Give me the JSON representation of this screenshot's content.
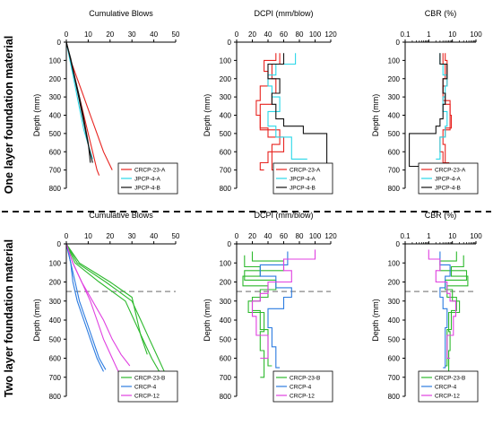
{
  "figure": {
    "row_labels": [
      "One layer foundation material",
      "Two layer foundation material"
    ],
    "colors": {
      "red": "#e8231f",
      "cyan": "#2ad7e8",
      "black": "#111111",
      "green": "#2db92d",
      "blue": "#2b7be0",
      "magenta": "#e040e0",
      "divider": "#111111",
      "ref_line": "#9a9a9a"
    }
  },
  "chart_data": [
    {
      "type": "line",
      "title": "Cumulative Blows",
      "ylabel": "Depth (mm)",
      "xlim": [
        0,
        50
      ],
      "ylim": [
        0,
        800
      ],
      "xticks": [
        "0",
        "10",
        "20",
        "30",
        "40",
        "50"
      ],
      "yticks": [
        "0",
        "100",
        "200",
        "300",
        "400",
        "500",
        "600",
        "700",
        "800"
      ],
      "legend": "bottom-right",
      "series": [
        {
          "name": "CRCP-23-A",
          "color": "red",
          "x": [
            0,
            2,
            5,
            8,
            11,
            14,
            17,
            21
          ],
          "y": [
            0,
            100,
            200,
            300,
            400,
            500,
            600,
            700
          ]
        },
        {
          "name": "CRCP-23-A",
          "color": "red",
          "x": [
            0,
            2,
            4,
            6,
            8,
            10,
            12,
            14,
            15
          ],
          "y": [
            0,
            100,
            200,
            300,
            400,
            500,
            600,
            700,
            730
          ]
        },
        {
          "name": "JPCP-4-A",
          "color": "cyan",
          "x": [
            0,
            2,
            4,
            6,
            8,
            10,
            12
          ],
          "y": [
            0,
            120,
            240,
            360,
            480,
            560,
            640
          ]
        },
        {
          "name": "JPCP-4-B",
          "color": "black",
          "x": [
            0,
            2,
            4,
            6,
            8,
            10,
            12
          ],
          "y": [
            0,
            100,
            210,
            320,
            440,
            560,
            660
          ]
        },
        {
          "name": "JPCP-4-B",
          "color": "black",
          "x": [
            0,
            2,
            4,
            6,
            8,
            10,
            11
          ],
          "y": [
            0,
            90,
            200,
            300,
            420,
            550,
            660
          ]
        }
      ]
    },
    {
      "type": "line",
      "title": "DCPI (mm/blow)",
      "ylabel": "Depth (mm)",
      "xlim": [
        0,
        120
      ],
      "ylim": [
        0,
        800
      ],
      "xticks": [
        "0",
        "20",
        "40",
        "60",
        "80",
        "100",
        "120"
      ],
      "yticks": [
        "0",
        "100",
        "200",
        "300",
        "400",
        "500",
        "600",
        "700",
        "800"
      ],
      "legend": "bottom-right",
      "series": [
        {
          "name": "CRCP-23-A",
          "color": "red",
          "x": [
            50,
            35,
            40,
            30,
            25,
            30,
            40,
            60,
            40,
            30,
            35
          ],
          "y": [
            60,
            100,
            160,
            240,
            320,
            400,
            470,
            520,
            600,
            660,
            700
          ]
        },
        {
          "name": "CRCP-23-A",
          "color": "red",
          "x": [
            55,
            45,
            50,
            45,
            30,
            30,
            55,
            45,
            60
          ],
          "y": [
            60,
            120,
            200,
            280,
            340,
            420,
            480,
            560,
            700
          ]
        },
        {
          "name": "JPCP-4-A",
          "color": "cyan",
          "x": [
            75,
            50,
            40,
            45,
            55,
            40,
            50,
            70,
            90
          ],
          "y": [
            60,
            120,
            180,
            240,
            300,
            380,
            460,
            520,
            640
          ]
        },
        {
          "name": "JPCP-4-B",
          "color": "black",
          "x": [
            60,
            40,
            55,
            45,
            50,
            60,
            85,
            115,
            90
          ],
          "y": [
            60,
            120,
            200,
            280,
            340,
            420,
            460,
            500,
            680
          ]
        }
      ]
    },
    {
      "type": "line",
      "title": "CBR (%)",
      "ylabel": "Depth (mm)",
      "xscale": "log",
      "xlim": [
        0.1,
        100
      ],
      "ylim": [
        0,
        800
      ],
      "xticks": [
        "0.1",
        "1",
        "10",
        "100"
      ],
      "yticks": [
        "0",
        "100",
        "200",
        "300",
        "400",
        "500",
        "600",
        "700",
        "800"
      ],
      "legend": "bottom-right",
      "series": [
        {
          "name": "CRCP-23-A",
          "color": "red",
          "x": [
            5,
            6,
            6,
            4,
            8,
            9,
            5,
            3,
            4,
            7,
            6
          ],
          "y": [
            60,
            100,
            160,
            240,
            320,
            400,
            470,
            520,
            600,
            660,
            700
          ]
        },
        {
          "name": "CRCP-23-A",
          "color": "red",
          "x": [
            4,
            5,
            4,
            5,
            8,
            8,
            4,
            5,
            3
          ],
          "y": [
            60,
            120,
            200,
            280,
            340,
            420,
            480,
            560,
            700
          ]
        },
        {
          "name": "JPCP-4-A",
          "color": "cyan",
          "x": [
            3,
            4,
            6,
            5,
            4,
            6,
            5,
            3,
            2
          ],
          "y": [
            60,
            120,
            180,
            240,
            300,
            380,
            460,
            520,
            640
          ]
        },
        {
          "name": "JPCP-4-B",
          "color": "black",
          "x": [
            3,
            6,
            4,
            5,
            4,
            3,
            2,
            0.15,
            2
          ],
          "y": [
            60,
            120,
            200,
            280,
            340,
            420,
            460,
            500,
            680
          ]
        }
      ]
    },
    {
      "type": "line",
      "title": "Cumulative Blows",
      "ylabel": "Depth (mm)",
      "xlim": [
        0,
        50
      ],
      "ylim": [
        0,
        800
      ],
      "xticks": [
        "0",
        "10",
        "20",
        "30",
        "40",
        "50"
      ],
      "yticks": [
        "0",
        "100",
        "200",
        "300",
        "400",
        "500",
        "600",
        "700",
        "800"
      ],
      "reference_depth": 250,
      "legend": "bottom-right",
      "series": [
        {
          "name": "CRCP-23-B",
          "color": "green",
          "x": [
            0,
            5,
            18,
            30,
            34,
            38,
            42,
            46
          ],
          "y": [
            0,
            100,
            200,
            300,
            400,
            500,
            600,
            700
          ]
        },
        {
          "name": "CRCP-23-B",
          "color": "green",
          "x": [
            0,
            4,
            15,
            27,
            31,
            35,
            39,
            44
          ],
          "y": [
            0,
            100,
            200,
            300,
            400,
            500,
            600,
            700
          ]
        },
        {
          "name": "CRCP-23-B",
          "color": "green",
          "x": [
            0,
            6,
            20,
            30,
            32,
            34,
            37
          ],
          "y": [
            0,
            100,
            200,
            280,
            380,
            480,
            580
          ]
        },
        {
          "name": "CRCP-4",
          "color": "blue",
          "x": [
            0,
            2,
            4,
            6,
            9,
            12,
            15,
            18
          ],
          "y": [
            0,
            100,
            200,
            300,
            400,
            500,
            600,
            660
          ]
        },
        {
          "name": "CRCP-4",
          "color": "blue",
          "x": [
            0,
            2,
            3,
            5,
            8,
            11,
            14,
            17
          ],
          "y": [
            0,
            100,
            200,
            300,
            400,
            500,
            600,
            670
          ]
        },
        {
          "name": "CRCP-12",
          "color": "magenta",
          "x": [
            0,
            3,
            7,
            11,
            14,
            17,
            21,
            25
          ],
          "y": [
            0,
            100,
            200,
            300,
            400,
            500,
            600,
            700
          ]
        },
        {
          "name": "CRCP-12",
          "color": "magenta",
          "x": [
            0,
            3,
            7,
            12,
            17,
            21,
            25,
            29
          ],
          "y": [
            0,
            100,
            200,
            300,
            400,
            500,
            580,
            640
          ]
        }
      ]
    },
    {
      "type": "line",
      "title": "DCPI (mm/blow)",
      "ylabel": "Depth (mm)",
      "xlim": [
        0,
        120
      ],
      "ylim": [
        0,
        800
      ],
      "xticks": [
        "0",
        "20",
        "40",
        "60",
        "80",
        "100",
        "120"
      ],
      "yticks": [
        "0",
        "100",
        "200",
        "300",
        "400",
        "500",
        "600",
        "700",
        "800"
      ],
      "reference_depth": 250,
      "legend": "bottom-right",
      "series": [
        {
          "name": "CRCP-23-B",
          "color": "green",
          "x": [
            20,
            60,
            10,
            50,
            30,
            15,
            35,
            30,
            35,
            30
          ],
          "y": [
            40,
            90,
            140,
            190,
            240,
            300,
            360,
            460,
            560,
            700
          ]
        },
        {
          "name": "CRCP-23-B",
          "color": "green",
          "x": [
            10,
            30,
            8,
            40,
            20,
            30,
            40,
            45
          ],
          "y": [
            60,
            120,
            170,
            220,
            280,
            350,
            450,
            640
          ]
        },
        {
          "name": "CRCP-4",
          "color": "blue",
          "x": [
            65,
            30,
            50,
            70,
            60,
            40,
            45,
            50,
            55
          ],
          "y": [
            40,
            110,
            170,
            230,
            280,
            340,
            440,
            540,
            650
          ]
        },
        {
          "name": "CRCP-12",
          "color": "magenta",
          "x": [
            100,
            60,
            70,
            40,
            30,
            20,
            25,
            40,
            30
          ],
          "y": [
            30,
            80,
            140,
            200,
            260,
            300,
            380,
            480,
            600
          ]
        }
      ]
    },
    {
      "type": "line",
      "title": "CBR (%)",
      "ylabel": "Depth (mm)",
      "xscale": "log",
      "xlim": [
        0.1,
        100
      ],
      "ylim": [
        0,
        800
      ],
      "xticks": [
        "0.1",
        "1",
        "10",
        "100"
      ],
      "yticks": [
        "0",
        "100",
        "200",
        "300",
        "400",
        "500",
        "600",
        "700",
        "800"
      ],
      "reference_depth": 250,
      "legend": "bottom-right",
      "series": [
        {
          "name": "CRCP-23-B",
          "color": "green",
          "x": [
            15,
            3,
            40,
            5,
            10,
            20,
            7,
            8,
            7,
            8
          ],
          "y": [
            40,
            90,
            140,
            190,
            240,
            300,
            360,
            460,
            560,
            700
          ]
        },
        {
          "name": "CRCP-23-B",
          "color": "green",
          "x": [
            30,
            9,
            45,
            6,
            15,
            9,
            6,
            5
          ],
          "y": [
            60,
            120,
            170,
            220,
            280,
            350,
            450,
            640
          ]
        },
        {
          "name": "CRCP-4",
          "color": "blue",
          "x": [
            3,
            8,
            5,
            3,
            4,
            6,
            5,
            5,
            4
          ],
          "y": [
            40,
            110,
            170,
            230,
            280,
            340,
            440,
            540,
            650
          ]
        },
        {
          "name": "CRCP-12",
          "color": "magenta",
          "x": [
            1,
            3,
            2,
            6,
            8,
            14,
            11,
            6,
            8
          ],
          "y": [
            30,
            80,
            140,
            200,
            260,
            300,
            380,
            480,
            600
          ]
        }
      ]
    }
  ]
}
